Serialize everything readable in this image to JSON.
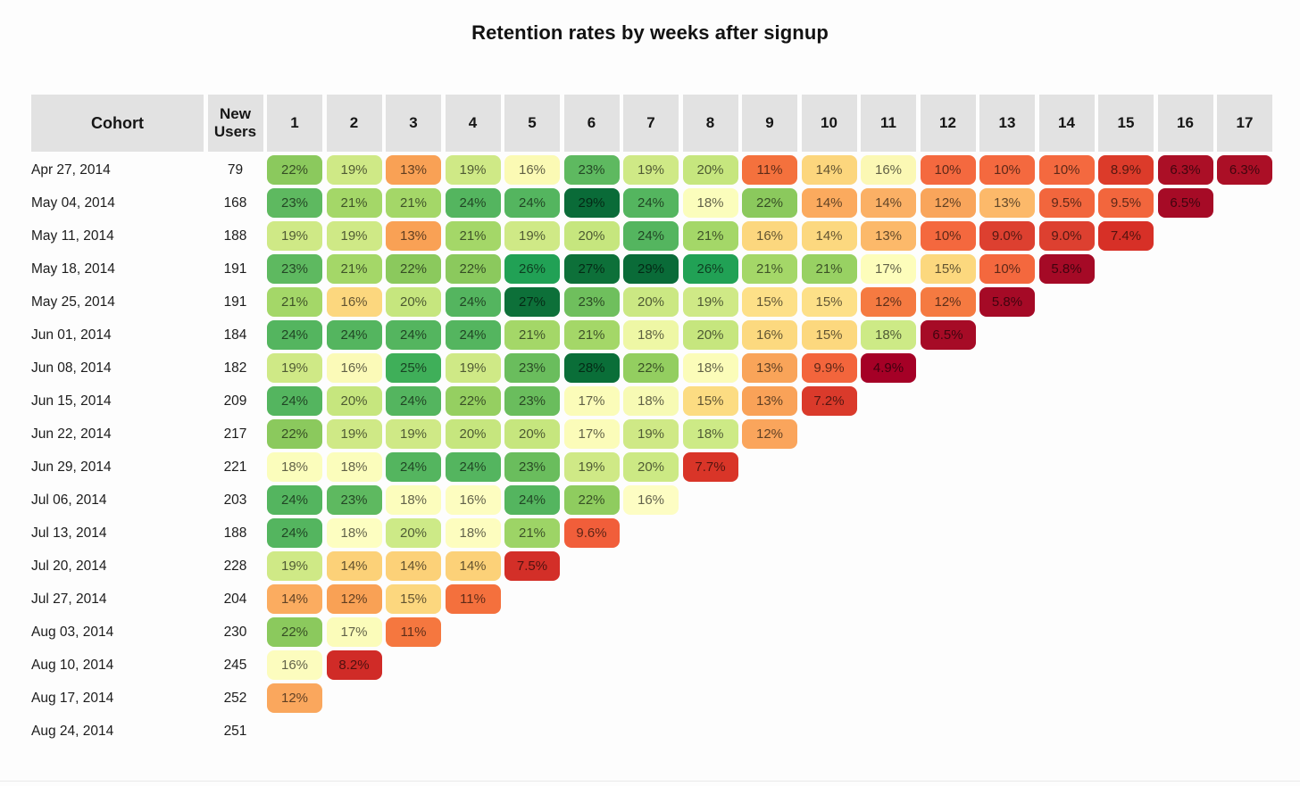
{
  "title": "Retention rates by weeks after signup",
  "chart_data": {
    "type": "heatmap",
    "title": "Retention rates by weeks after signup",
    "palette_hint": "RdYlGn (red=low retention, green=high)",
    "header_bg": "#e2e2e2",
    "cell_text_color": "rgba(0,0,0,0.62)",
    "col_headers": {
      "cohort": "Cohort",
      "new_users": "New Users",
      "weeks": [
        "1",
        "2",
        "3",
        "4",
        "5",
        "6",
        "7",
        "8",
        "9",
        "10",
        "11",
        "12",
        "13",
        "14",
        "15",
        "16",
        "17"
      ]
    },
    "rows": [
      {
        "cohort": "Apr 27, 2014",
        "new_users": "79",
        "cells": [
          {
            "v": "22%",
            "c": "#8bc95d"
          },
          {
            "v": "19%",
            "c": "#cfe986"
          },
          {
            "v": "13%",
            "c": "#f9a155"
          },
          {
            "v": "19%",
            "c": "#cfe986"
          },
          {
            "v": "16%",
            "c": "#fbfab4"
          },
          {
            "v": "23%",
            "c": "#5eb960"
          },
          {
            "v": "19%",
            "c": "#cfe986"
          },
          {
            "v": "20%",
            "c": "#c6e67e"
          },
          {
            "v": "11%",
            "c": "#f4713d"
          },
          {
            "v": "14%",
            "c": "#fcd67d"
          },
          {
            "v": "16%",
            "c": "#fbf8b4"
          },
          {
            "v": "10%",
            "c": "#f4693f"
          },
          {
            "v": "10%",
            "c": "#f4693f"
          },
          {
            "v": "10%",
            "c": "#f4693f"
          },
          {
            "v": "8.9%",
            "c": "#dc3b2a"
          },
          {
            "v": "6.3%",
            "c": "#ab0f26"
          },
          {
            "v": "6.3%",
            "c": "#ab0f26"
          }
        ]
      },
      {
        "cohort": "May 04, 2014",
        "new_users": "168",
        "cells": [
          {
            "v": "23%",
            "c": "#5eb960"
          },
          {
            "v": "21%",
            "c": "#a4d768"
          },
          {
            "v": "21%",
            "c": "#a4d768"
          },
          {
            "v": "24%",
            "c": "#54b55f"
          },
          {
            "v": "24%",
            "c": "#54b55f"
          },
          {
            "v": "29%",
            "c": "#0a6b38"
          },
          {
            "v": "24%",
            "c": "#54b55f"
          },
          {
            "v": "18%",
            "c": "#fbfdbc"
          },
          {
            "v": "22%",
            "c": "#8bc95d"
          },
          {
            "v": "14%",
            "c": "#fbaa5e"
          },
          {
            "v": "14%",
            "c": "#fbb065"
          },
          {
            "v": "12%",
            "c": "#f9a55b"
          },
          {
            "v": "13%",
            "c": "#fcb96a"
          },
          {
            "v": "9.5%",
            "c": "#f2663d"
          },
          {
            "v": "9.5%",
            "c": "#f2663d"
          },
          {
            "v": "6.5%",
            "c": "#a60b26"
          }
        ]
      },
      {
        "cohort": "May 11, 2014",
        "new_users": "188",
        "cells": [
          {
            "v": "19%",
            "c": "#cfe986"
          },
          {
            "v": "19%",
            "c": "#cfe986"
          },
          {
            "v": "13%",
            "c": "#f9a155"
          },
          {
            "v": "21%",
            "c": "#a4d768"
          },
          {
            "v": "19%",
            "c": "#cfe986"
          },
          {
            "v": "20%",
            "c": "#c6e67e"
          },
          {
            "v": "24%",
            "c": "#54b55f"
          },
          {
            "v": "21%",
            "c": "#a4d768"
          },
          {
            "v": "16%",
            "c": "#fcd77e"
          },
          {
            "v": "14%",
            "c": "#fcd87f"
          },
          {
            "v": "13%",
            "c": "#fcb96a"
          },
          {
            "v": "10%",
            "c": "#f4683e"
          },
          {
            "v": "9.0%",
            "c": "#dd4030"
          },
          {
            "v": "9.0%",
            "c": "#dd4030"
          },
          {
            "v": "7.4%",
            "c": "#d73027"
          }
        ]
      },
      {
        "cohort": "May 18, 2014",
        "new_users": "191",
        "cells": [
          {
            "v": "23%",
            "c": "#5eb960"
          },
          {
            "v": "21%",
            "c": "#a4d768"
          },
          {
            "v": "22%",
            "c": "#8bc95d"
          },
          {
            "v": "22%",
            "c": "#8bc95d"
          },
          {
            "v": "26%",
            "c": "#21a155"
          },
          {
            "v": "27%",
            "c": "#0d7039"
          },
          {
            "v": "29%",
            "c": "#0a6b38"
          },
          {
            "v": "26%",
            "c": "#21a155"
          },
          {
            "v": "21%",
            "c": "#a4d768"
          },
          {
            "v": "21%",
            "c": "#98d163"
          },
          {
            "v": "17%",
            "c": "#fdfdbb"
          },
          {
            "v": "15%",
            "c": "#fcd87e"
          },
          {
            "v": "10%",
            "c": "#f4683e"
          },
          {
            "v": "5.8%",
            "c": "#a50a26"
          }
        ]
      },
      {
        "cohort": "May 25, 2014",
        "new_users": "191",
        "cells": [
          {
            "v": "21%",
            "c": "#a4d768"
          },
          {
            "v": "16%",
            "c": "#fcd77e"
          },
          {
            "v": "20%",
            "c": "#c6e67e"
          },
          {
            "v": "24%",
            "c": "#54b55f"
          },
          {
            "v": "27%",
            "c": "#0d7039"
          },
          {
            "v": "23%",
            "c": "#6fbf5d"
          },
          {
            "v": "20%",
            "c": "#cbe883"
          },
          {
            "v": "19%",
            "c": "#cfe986"
          },
          {
            "v": "15%",
            "c": "#fde088"
          },
          {
            "v": "15%",
            "c": "#fde088"
          },
          {
            "v": "12%",
            "c": "#f57a41"
          },
          {
            "v": "12%",
            "c": "#f57a41"
          },
          {
            "v": "5.8%",
            "c": "#a50a26"
          }
        ]
      },
      {
        "cohort": "Jun 01, 2014",
        "new_users": "184",
        "cells": [
          {
            "v": "24%",
            "c": "#54b55f"
          },
          {
            "v": "24%",
            "c": "#54b55f"
          },
          {
            "v": "24%",
            "c": "#54b55f"
          },
          {
            "v": "24%",
            "c": "#54b55f"
          },
          {
            "v": "21%",
            "c": "#a4d768"
          },
          {
            "v": "21%",
            "c": "#a4d768"
          },
          {
            "v": "18%",
            "c": "#eef7a5"
          },
          {
            "v": "20%",
            "c": "#c6e67e"
          },
          {
            "v": "16%",
            "c": "#fcd97f"
          },
          {
            "v": "15%",
            "c": "#fcd87e"
          },
          {
            "v": "18%",
            "c": "#cdea86"
          },
          {
            "v": "6.5%",
            "c": "#a60b26"
          }
        ]
      },
      {
        "cohort": "Jun 08, 2014",
        "new_users": "182",
        "cells": [
          {
            "v": "19%",
            "c": "#cfe986"
          },
          {
            "v": "16%",
            "c": "#fbfab8"
          },
          {
            "v": "25%",
            "c": "#3faf59"
          },
          {
            "v": "19%",
            "c": "#cfe986"
          },
          {
            "v": "23%",
            "c": "#6abd5d"
          },
          {
            "v": "28%",
            "c": "#0a6e38"
          },
          {
            "v": "22%",
            "c": "#93ce60"
          },
          {
            "v": "18%",
            "c": "#fbfcb9"
          },
          {
            "v": "13%",
            "c": "#f9a459"
          },
          {
            "v": "9.9%",
            "c": "#f3653c"
          },
          {
            "v": "4.9%",
            "c": "#a50026"
          }
        ]
      },
      {
        "cohort": "Jun 15, 2014",
        "new_users": "209",
        "cells": [
          {
            "v": "24%",
            "c": "#54b55f"
          },
          {
            "v": "20%",
            "c": "#c6e67e"
          },
          {
            "v": "24%",
            "c": "#54b55f"
          },
          {
            "v": "22%",
            "c": "#95cf61"
          },
          {
            "v": "23%",
            "c": "#6abd5d"
          },
          {
            "v": "17%",
            "c": "#fbfcb9"
          },
          {
            "v": "18%",
            "c": "#f7fab4"
          },
          {
            "v": "15%",
            "c": "#fcdc82"
          },
          {
            "v": "13%",
            "c": "#f9a258"
          },
          {
            "v": "7.2%",
            "c": "#da3a2b"
          }
        ]
      },
      {
        "cohort": "Jun 22, 2014",
        "new_users": "217",
        "cells": [
          {
            "v": "22%",
            "c": "#8bc95d"
          },
          {
            "v": "19%",
            "c": "#cfe986"
          },
          {
            "v": "19%",
            "c": "#cfe986"
          },
          {
            "v": "20%",
            "c": "#c6e67e"
          },
          {
            "v": "20%",
            "c": "#c6e67e"
          },
          {
            "v": "17%",
            "c": "#fbfcb9"
          },
          {
            "v": "19%",
            "c": "#cfe986"
          },
          {
            "v": "18%",
            "c": "#cdea86"
          },
          {
            "v": "12%",
            "c": "#faa55c"
          }
        ]
      },
      {
        "cohort": "Jun 29, 2014",
        "new_users": "221",
        "cells": [
          {
            "v": "18%",
            "c": "#fbfdbc"
          },
          {
            "v": "18%",
            "c": "#fbfdbc"
          },
          {
            "v": "24%",
            "c": "#54b55f"
          },
          {
            "v": "24%",
            "c": "#54b55f"
          },
          {
            "v": "23%",
            "c": "#6abd5d"
          },
          {
            "v": "19%",
            "c": "#cfe986"
          },
          {
            "v": "20%",
            "c": "#cce984"
          },
          {
            "v": "7.7%",
            "c": "#d93528"
          }
        ]
      },
      {
        "cohort": "Jul 06, 2014",
        "new_users": "203",
        "cells": [
          {
            "v": "24%",
            "c": "#54b55f"
          },
          {
            "v": "23%",
            "c": "#5eb960"
          },
          {
            "v": "18%",
            "c": "#fcfdbd"
          },
          {
            "v": "16%",
            "c": "#fdfdc0"
          },
          {
            "v": "24%",
            "c": "#54b55f"
          },
          {
            "v": "22%",
            "c": "#8fcc5f"
          },
          {
            "v": "16%",
            "c": "#fdfdc3"
          }
        ]
      },
      {
        "cohort": "Jul 13, 2014",
        "new_users": "188",
        "cells": [
          {
            "v": "24%",
            "c": "#54b55f"
          },
          {
            "v": "18%",
            "c": "#fdfec1"
          },
          {
            "v": "20%",
            "c": "#cdea87"
          },
          {
            "v": "18%",
            "c": "#fdfdbf"
          },
          {
            "v": "21%",
            "c": "#9dd466"
          },
          {
            "v": "9.6%",
            "c": "#f15e3a"
          }
        ]
      },
      {
        "cohort": "Jul 20, 2014",
        "new_users": "228",
        "cells": [
          {
            "v": "19%",
            "c": "#cfe986"
          },
          {
            "v": "14%",
            "c": "#fcd178"
          },
          {
            "v": "14%",
            "c": "#fcd178"
          },
          {
            "v": "14%",
            "c": "#fcd178"
          },
          {
            "v": "7.5%",
            "c": "#d32f28"
          }
        ]
      },
      {
        "cohort": "Jul 27, 2014",
        "new_users": "204",
        "cells": [
          {
            "v": "14%",
            "c": "#fbac60"
          },
          {
            "v": "12%",
            "c": "#f9a155"
          },
          {
            "v": "15%",
            "c": "#fcd77e"
          },
          {
            "v": "11%",
            "c": "#f4703d"
          }
        ]
      },
      {
        "cohort": "Aug 03, 2014",
        "new_users": "230",
        "cells": [
          {
            "v": "22%",
            "c": "#8bc95d"
          },
          {
            "v": "17%",
            "c": "#fbfcba"
          },
          {
            "v": "11%",
            "c": "#f5773f"
          }
        ]
      },
      {
        "cohort": "Aug 10, 2014",
        "new_users": "245",
        "cells": [
          {
            "v": "16%",
            "c": "#fcfcbe"
          },
          {
            "v": "8.2%",
            "c": "#d02b27"
          }
        ]
      },
      {
        "cohort": "Aug 17, 2014",
        "new_users": "252",
        "cells": [
          {
            "v": "12%",
            "c": "#faa75d"
          }
        ]
      },
      {
        "cohort": "Aug 24, 2014",
        "new_users": "251",
        "cells": []
      }
    ]
  }
}
